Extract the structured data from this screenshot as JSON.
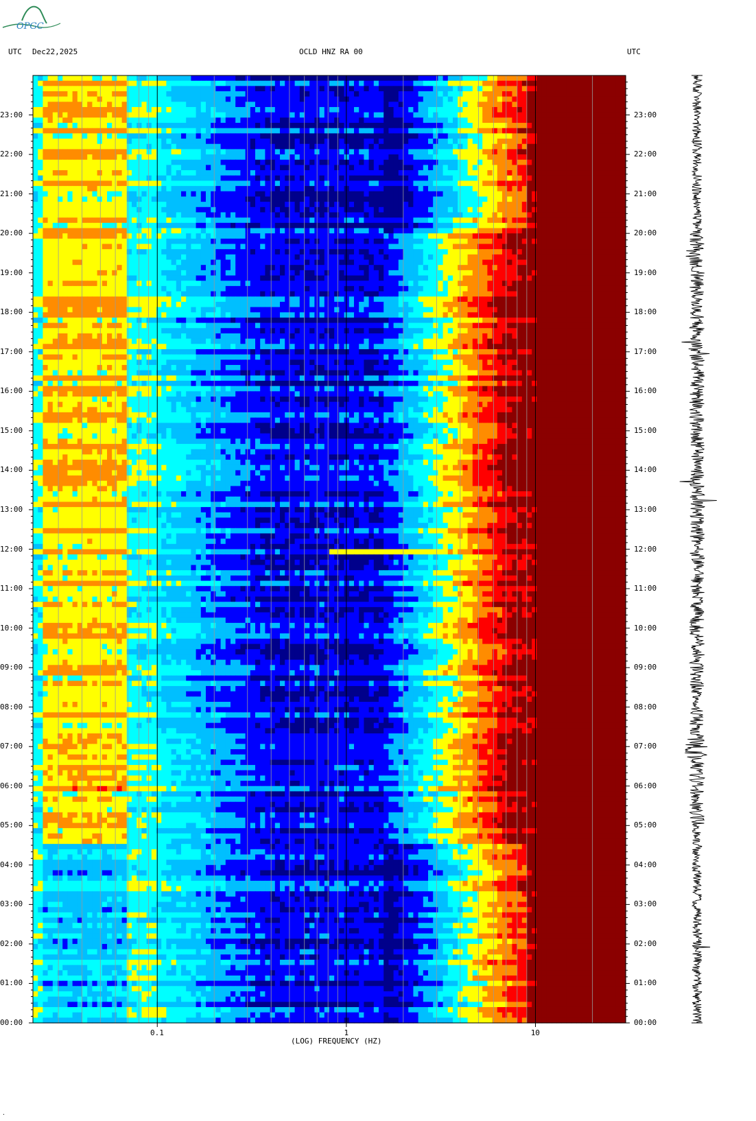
{
  "logo": {
    "text": "OPGC",
    "color": "#2e8b57"
  },
  "header": {
    "left_tz": "UTC",
    "date": "Dec22,2025",
    "station": "OCLD HNZ RA 00",
    "right_tz": "UTC"
  },
  "chart_data": {
    "type": "heatmap",
    "title": "OCLD HNZ RA 00",
    "xlabel": "(LOG) FREQUENCY (HZ)",
    "ylabel": "UTC",
    "x_scale": "log",
    "x_range_hz": [
      0.022,
      30
    ],
    "x_ticks": [
      {
        "value": 0.1,
        "label": "0.1"
      },
      {
        "value": 1,
        "label": "1"
      },
      {
        "value": 10,
        "label": "10"
      }
    ],
    "y_range_hours": [
      0,
      24
    ],
    "y_ticks": [
      "00:00",
      "01:00",
      "02:00",
      "03:00",
      "04:00",
      "05:00",
      "06:00",
      "07:00",
      "08:00",
      "09:00",
      "10:00",
      "11:00",
      "12:00",
      "13:00",
      "14:00",
      "15:00",
      "16:00",
      "17:00",
      "18:00",
      "19:00",
      "20:00",
      "21:00",
      "22:00",
      "23:00"
    ],
    "colormap": [
      "#00008b",
      "#0000ff",
      "#00bfff",
      "#00ffff",
      "#ffff00",
      "#ff8c00",
      "#ff0000",
      "#8b0000"
    ],
    "frame_color": "#000000",
    "gridline_color": "#999999",
    "notes_visible": {
      "low_freq_band_hz": [
        0.025,
        0.07
      ],
      "low_freq_band_active_hours": [
        4.5,
        24
      ],
      "dark_red_region_above_hz": 10,
      "narrow_spike_hour": 11.9
    }
  },
  "seismogram": {
    "color": "#000000"
  },
  "footer_mark": "."
}
